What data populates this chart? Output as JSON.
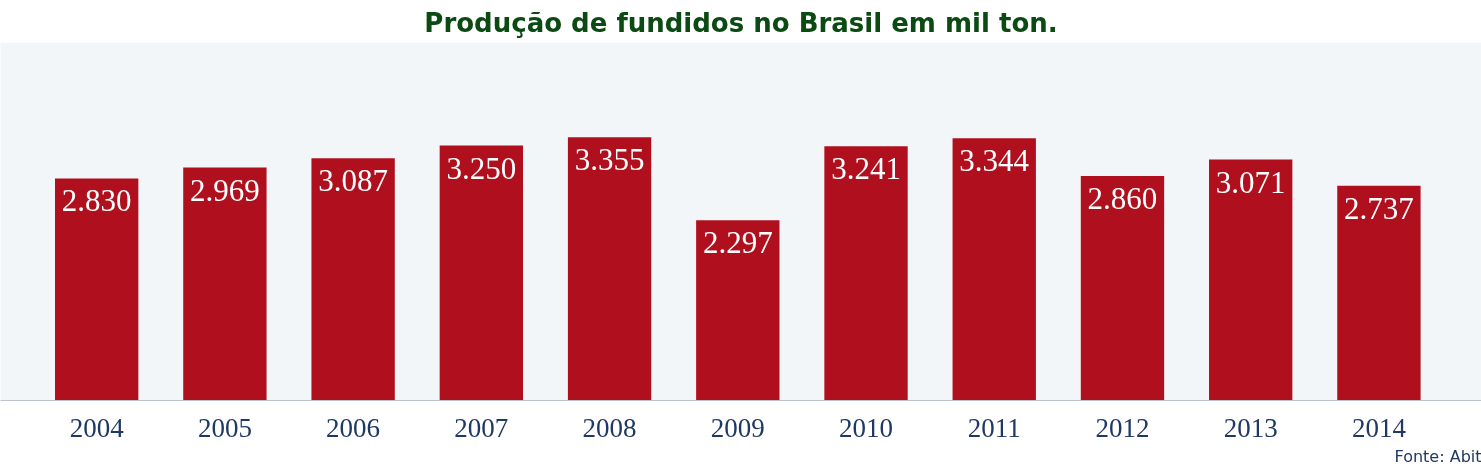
{
  "chart_data": {
    "type": "bar",
    "title": "Produção de fundidos no Brasil em mil ton.",
    "categories": [
      "2004",
      "2005",
      "2006",
      "2007",
      "2008",
      "2009",
      "2010",
      "2011",
      "2012",
      "2013",
      "2014"
    ],
    "values": [
      2830,
      2969,
      3087,
      3250,
      3355,
      2297,
      3241,
      3344,
      2860,
      3071,
      2737
    ],
    "value_labels": [
      "2.830",
      "2.969",
      "3.087",
      "3.250",
      "3.355",
      "2.297",
      "3.241",
      "3.344",
      "2.860",
      "3.071",
      "2.737"
    ],
    "color": "#b0101e",
    "annotations": [
      "Fonte: Abit"
    ],
    "grid": false
  }
}
